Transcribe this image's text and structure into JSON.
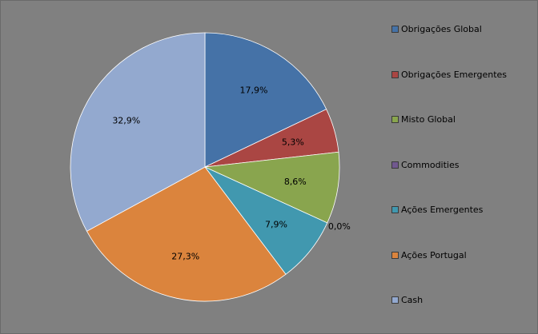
{
  "chart_data": {
    "type": "pie",
    "title": "",
    "legend_position": "right",
    "start_angle_deg": 0,
    "direction": "clockwise",
    "slices": [
      {
        "label": "Obrigações Global",
        "value": 17.9,
        "display": "17,9%",
        "color": "#4572A7"
      },
      {
        "label": "Obrigações Emergentes",
        "value": 5.3,
        "display": "5,3%",
        "color": "#AA4643"
      },
      {
        "label": "Misto Global",
        "value": 8.6,
        "display": "8,6%",
        "color": "#89A54E"
      },
      {
        "label": "Commodities",
        "value": 0.0,
        "display": "0,0%",
        "color": "#71588F"
      },
      {
        "label": "Ações Emergentes",
        "value": 7.9,
        "display": "7,9%",
        "color": "#4198AF"
      },
      {
        "label": "Ações Portugal",
        "value": 27.3,
        "display": "27,3%",
        "color": "#DB843D"
      },
      {
        "label": "Cash",
        "value": 32.9,
        "display": "32,9%",
        "color": "#93A9CF"
      }
    ]
  }
}
